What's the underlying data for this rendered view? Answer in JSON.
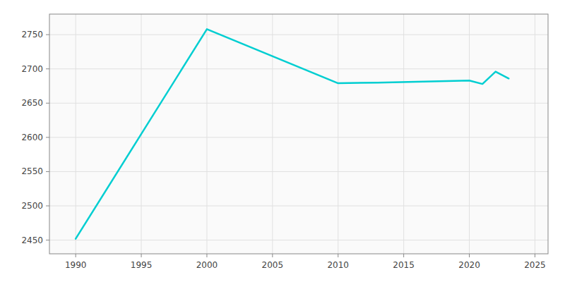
{
  "chart_data": {
    "type": "line",
    "x": [
      1990,
      2000,
      2010,
      2013,
      2020,
      2021,
      2022,
      2023
    ],
    "values": [
      2452,
      2758,
      2679,
      2680,
      2683,
      2678,
      2696,
      2686
    ],
    "color": "#00CED1",
    "xlim": [
      1988,
      2026
    ],
    "ylim": [
      2430,
      2780
    ],
    "xticks": [
      1990,
      1995,
      2000,
      2005,
      2010,
      2015,
      2020,
      2025
    ],
    "yticks": [
      2450,
      2500,
      2550,
      2600,
      2650,
      2700,
      2750
    ],
    "grid": true
  }
}
